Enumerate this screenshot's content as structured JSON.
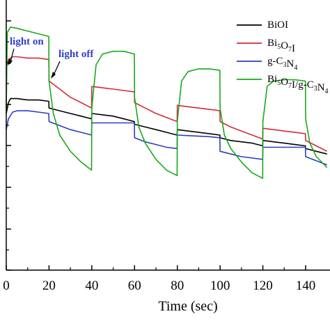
{
  "chart_data": {
    "type": "line",
    "xlabel": "Time (sec)",
    "ylabel": "",
    "xlim": [
      0,
      150
    ],
    "x_ticks": [
      0,
      20,
      40,
      60,
      80,
      100,
      120,
      140
    ],
    "x_tick_labels": [
      "0",
      "20",
      "40",
      "60",
      "80",
      "100",
      "120",
      "140"
    ],
    "ylim": [
      0,
      1
    ],
    "grid": false,
    "legend_position": "top-right",
    "annotations": [
      {
        "text": "light on",
        "x": 0
      },
      {
        "text": "light off",
        "x": 20
      }
    ],
    "legend": [
      {
        "text": "BiOI",
        "color": "#000000"
      },
      {
        "text": "Bi5O7I",
        "color": "#d42a3a"
      },
      {
        "text": "g-C3N4",
        "color": "#2a3fc0"
      },
      {
        "text": "Bi5O7I/g-C3N4",
        "color": "#1aa81a"
      }
    ],
    "series": [
      {
        "color": "#000000",
        "x": [
          0,
          1,
          2,
          5,
          10,
          15,
          19.9,
          20,
          25,
          30,
          35,
          39.9,
          40,
          45,
          50,
          55,
          59.9,
          60,
          65,
          70,
          75,
          79.9,
          80,
          85,
          90,
          95,
          99.9,
          100,
          105,
          110,
          115,
          119.9,
          120,
          125,
          130,
          135,
          139.9,
          140,
          145,
          150
        ],
        "y": [
          0.58,
          0.62,
          0.635,
          0.635,
          0.63,
          0.63,
          0.625,
          0.6,
          0.59,
          0.58,
          0.57,
          0.56,
          0.58,
          0.575,
          0.57,
          0.56,
          0.55,
          0.54,
          0.53,
          0.52,
          0.51,
          0.5,
          0.52,
          0.515,
          0.51,
          0.505,
          0.5,
          0.49,
          0.48,
          0.475,
          0.47,
          0.46,
          0.48,
          0.475,
          0.47,
          0.465,
          0.46,
          0.45,
          0.44,
          0.43
        ]
      },
      {
        "color": "#d42a3a",
        "x": [
          0,
          1,
          3,
          5,
          10,
          15,
          19.9,
          20,
          25,
          30,
          35,
          39.9,
          40,
          45,
          50,
          55,
          59.9,
          60,
          65,
          70,
          75,
          79.9,
          80,
          85,
          90,
          95,
          99.9,
          100,
          105,
          110,
          115,
          119.9,
          120,
          125,
          130,
          135,
          139.9,
          140,
          145,
          150
        ],
        "y": [
          0.75,
          0.78,
          0.79,
          0.79,
          0.785,
          0.785,
          0.78,
          0.7,
          0.67,
          0.64,
          0.62,
          0.6,
          0.68,
          0.675,
          0.67,
          0.665,
          0.66,
          0.62,
          0.6,
          0.58,
          0.565,
          0.55,
          0.61,
          0.605,
          0.6,
          0.595,
          0.59,
          0.55,
          0.53,
          0.515,
          0.5,
          0.485,
          0.525,
          0.52,
          0.515,
          0.51,
          0.505,
          0.48,
          0.46,
          0.44
        ]
      },
      {
        "color": "#2a3fc0",
        "x": [
          0,
          1,
          3,
          5,
          10,
          15,
          19.9,
          20,
          25,
          30,
          35,
          39.9,
          40,
          45,
          50,
          55,
          59.9,
          60,
          65,
          70,
          75,
          79.9,
          80,
          85,
          90,
          95,
          99.9,
          100,
          105,
          110,
          115,
          119.9,
          120,
          125,
          130,
          135,
          139.9,
          140,
          145,
          150
        ],
        "y": [
          0.52,
          0.56,
          0.585,
          0.59,
          0.59,
          0.585,
          0.58,
          0.55,
          0.535,
          0.52,
          0.51,
          0.5,
          0.545,
          0.545,
          0.545,
          0.545,
          0.545,
          0.49,
          0.475,
          0.465,
          0.455,
          0.45,
          0.5,
          0.498,
          0.496,
          0.494,
          0.49,
          0.44,
          0.43,
          0.42,
          0.415,
          0.41,
          0.455,
          0.455,
          0.455,
          0.455,
          0.455,
          0.42,
          0.405,
          0.39
        ]
      },
      {
        "color": "#1aa81a",
        "x": [
          0,
          0.5,
          2,
          5,
          10,
          15,
          19.9,
          20,
          22,
          25,
          30,
          35,
          39.9,
          40,
          42,
          45,
          50,
          55,
          59.9,
          60,
          62,
          65,
          70,
          75,
          79.9,
          80,
          82,
          85,
          90,
          95,
          99.9,
          100,
          102,
          105,
          110,
          115,
          119.9,
          120,
          122,
          125,
          130,
          135,
          139.9,
          140,
          142,
          145,
          150
        ],
        "y": [
          0.6,
          0.88,
          0.9,
          0.895,
          0.885,
          0.875,
          0.865,
          0.7,
          0.58,
          0.5,
          0.44,
          0.4,
          0.37,
          0.6,
          0.76,
          0.8,
          0.81,
          0.81,
          0.8,
          0.64,
          0.53,
          0.47,
          0.41,
          0.37,
          0.35,
          0.55,
          0.7,
          0.735,
          0.745,
          0.745,
          0.74,
          0.6,
          0.5,
          0.45,
          0.4,
          0.36,
          0.34,
          0.55,
          0.68,
          0.7,
          0.705,
          0.705,
          0.7,
          0.56,
          0.47,
          0.42,
          0.38
        ]
      }
    ]
  }
}
